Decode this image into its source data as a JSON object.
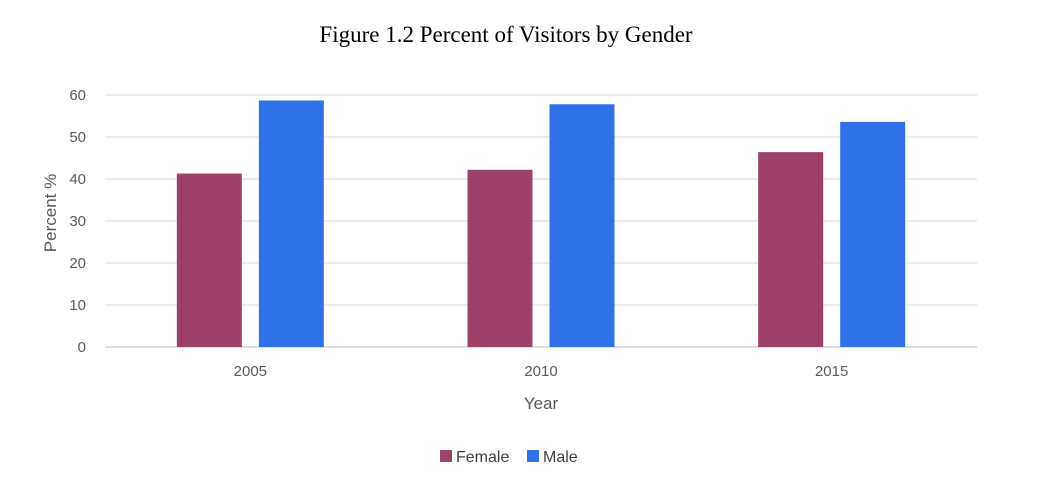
{
  "chart_data": {
    "type": "bar",
    "title": "Figure 1.2  Percent of Visitors by Gender",
    "xlabel": "Year",
    "ylabel": "Percent %",
    "categories": [
      "2005",
      "2010",
      "2015"
    ],
    "series": [
      {
        "name": "Female",
        "values": [
          41.3,
          42.2,
          46.4
        ],
        "color": "#9E4169"
      },
      {
        "name": "Male",
        "values": [
          58.7,
          57.8,
          53.6
        ],
        "color": "#2F72E8"
      }
    ],
    "ylim": [
      0,
      60
    ],
    "yticks": [
      "0",
      "10",
      "20",
      "30",
      "40",
      "50",
      "60"
    ],
    "grid": true,
    "gridColor": "#d9d9d9",
    "legend": "bottom-center"
  }
}
